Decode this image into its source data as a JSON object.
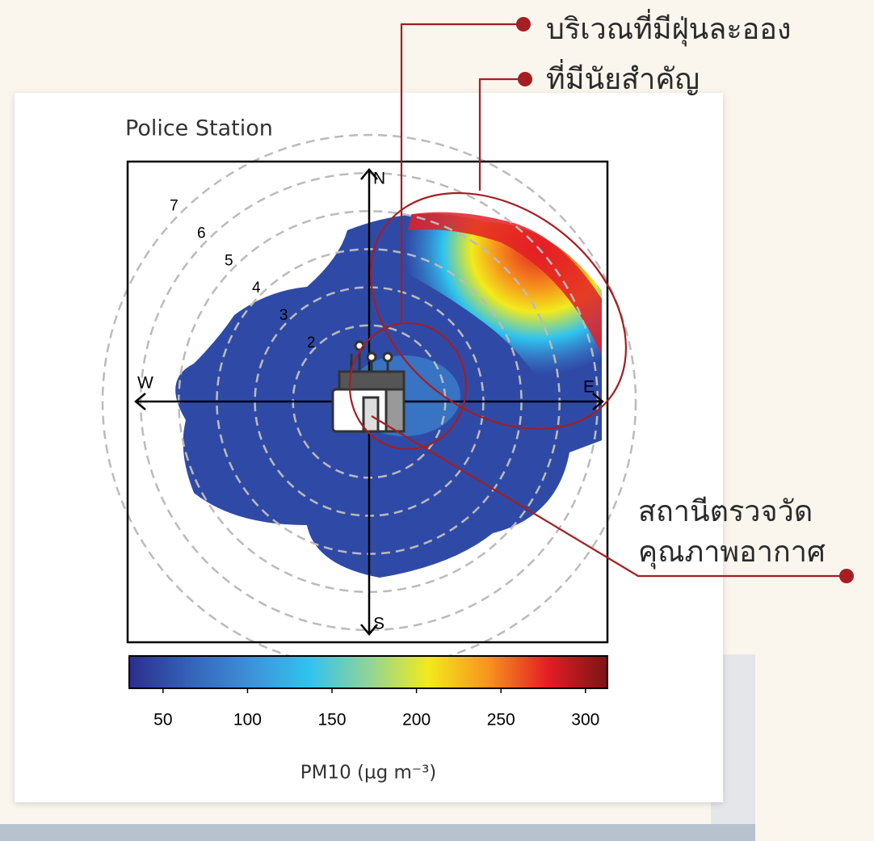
{
  "annotations": {
    "hotspot": [
      "บริเวณที่มีฝุ่นละออง",
      "ที่มีนัยสำคัญ"
    ],
    "station": [
      "สถานีตรวจวัด",
      "คุณภาพอากาศ"
    ]
  },
  "chart_data": {
    "type": "polar",
    "title": "Police Station",
    "compass": {
      "north": "N",
      "east": "E",
      "south": "S",
      "west": "W"
    },
    "rlim": [
      0,
      7
    ],
    "rticks": [
      2,
      3,
      4,
      5,
      6,
      7
    ],
    "colorbar": {
      "label": "PM10 (µg m⁻³)",
      "lim": [
        30,
        313
      ],
      "ticks": [
        50,
        100,
        150,
        200,
        250,
        300
      ],
      "colors": [
        "#2b2e8c",
        "#3562b8",
        "#3f8fd8",
        "#2fc3ef",
        "#8fd49a",
        "#f2ea1c",
        "#f7941d",
        "#e31e24",
        "#7a1416"
      ]
    }
  }
}
